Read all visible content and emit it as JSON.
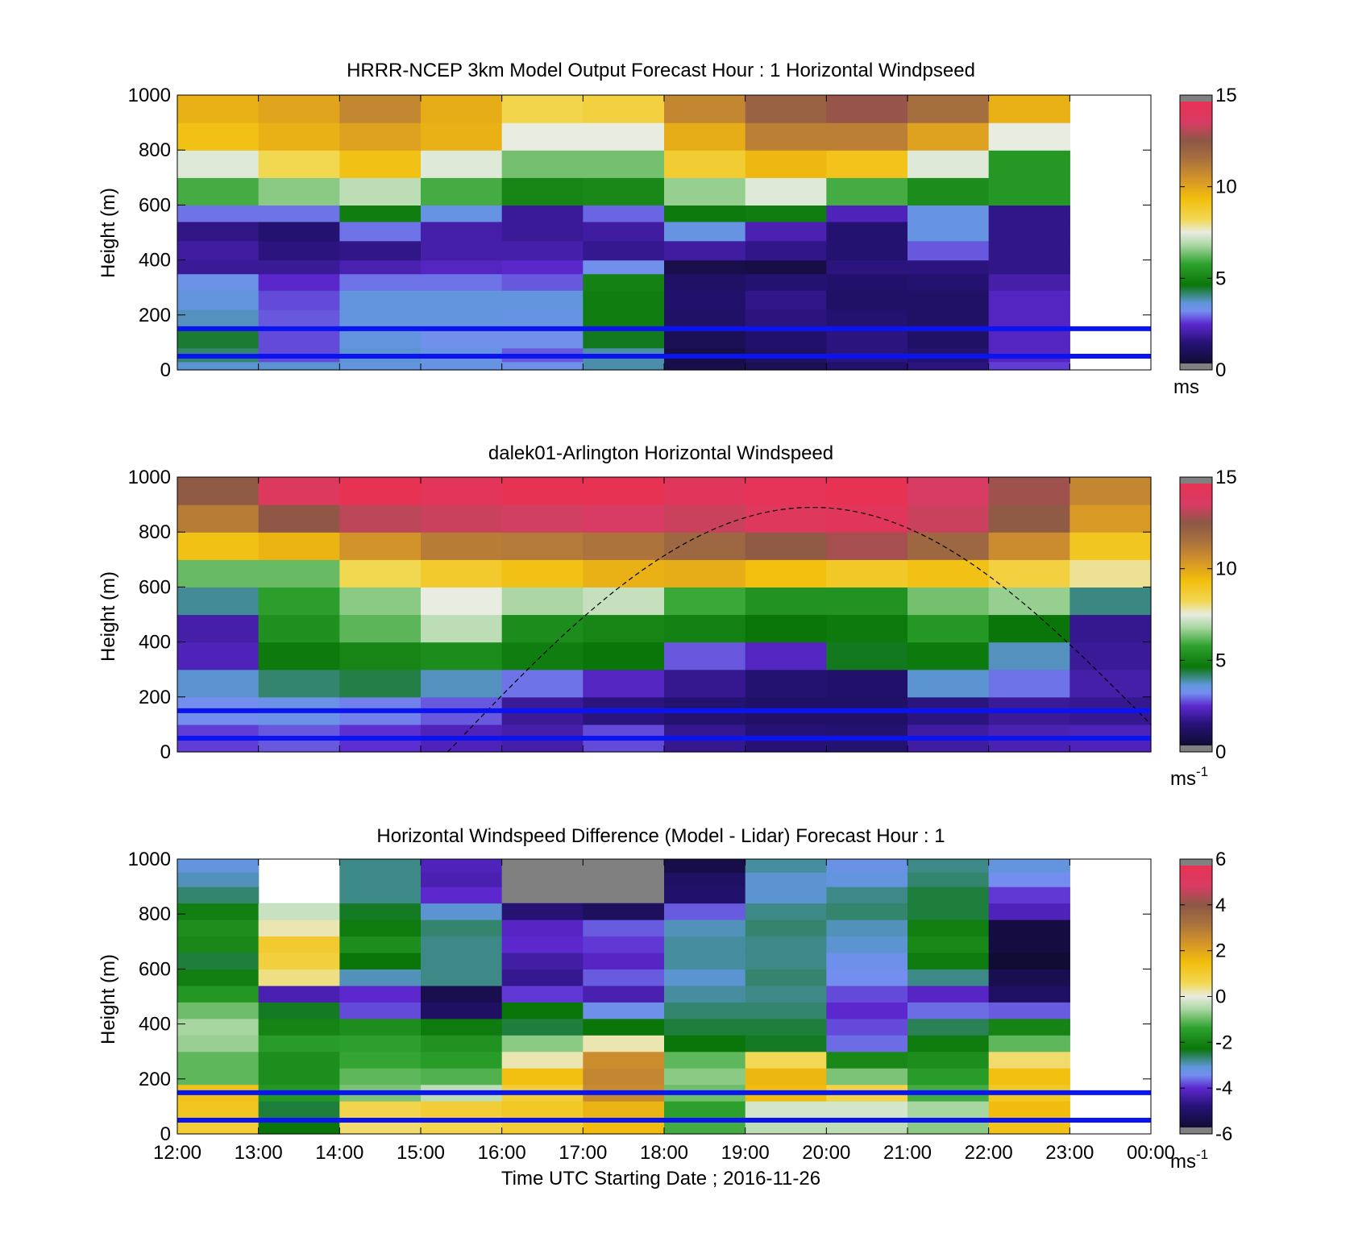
{
  "figure": {
    "xlabel": "Time UTC  Starting Date ; 2016-11-26",
    "time_ticks": [
      "12:00",
      "13:00",
      "14:00",
      "15:00",
      "16:00",
      "17:00",
      "18:00",
      "19:00",
      "20:00",
      "21:00",
      "22:00",
      "23:00",
      "00:00"
    ]
  },
  "chart_data": [
    {
      "type": "heatmap",
      "title": "HRRR-NCEP 3km Model Output   Forecast Hour : 1 Horizontal Windpseed",
      "ylabel": "Height (m)",
      "y_ticks": [
        "0",
        "200",
        "400",
        "600",
        "800",
        "1000"
      ],
      "ylim": [
        0,
        1000
      ],
      "x_range_hours": [
        12,
        24
      ],
      "colorbar": {
        "ticks": [
          "0",
          "5",
          "10",
          "15"
        ],
        "range": [
          0,
          15
        ],
        "unit": "ms",
        "unit_exponent": ""
      },
      "colormap": "speed",
      "grid": false,
      "x": [
        "12:00",
        "13:00",
        "14:00",
        "15:00",
        "16:00",
        "17:00",
        "18:00",
        "19:00",
        "20:00",
        "21:00",
        "22:00"
      ],
      "y_bins_m": [
        [
          0,
          30
        ],
        [
          30,
          80
        ],
        [
          80,
          150
        ],
        [
          150,
          220
        ],
        [
          220,
          290
        ],
        [
          290,
          350
        ],
        [
          350,
          400
        ],
        [
          400,
          470
        ],
        [
          470,
          540
        ],
        [
          540,
          600
        ],
        [
          600,
          700
        ],
        [
          700,
          800
        ],
        [
          800,
          900
        ],
        [
          900,
          1000
        ]
      ],
      "values": [
        [
          3.5,
          3.5,
          3.4,
          3.3,
          3.2,
          3.7,
          0.4,
          0.6,
          1.0,
          1.3,
          2.4
        ],
        [
          4.0,
          2.5,
          3.5,
          3.3,
          2.6,
          3.7,
          0.3,
          0.8,
          1.3,
          1.1,
          2.1
        ],
        [
          4.3,
          2.5,
          3.4,
          3.1,
          3.1,
          4.4,
          0.6,
          1.0,
          1.3,
          0.9,
          2.1
        ],
        [
          3.6,
          2.6,
          3.4,
          3.4,
          3.3,
          4.7,
          0.9,
          1.3,
          1.1,
          0.9,
          2.1
        ],
        [
          3.4,
          2.5,
          3.4,
          3.4,
          3.4,
          4.7,
          1.0,
          1.4,
          0.9,
          0.9,
          2.1
        ],
        [
          3.2,
          2.2,
          2.8,
          2.8,
          2.6,
          4.8,
          0.9,
          1.1,
          1.0,
          1.1,
          1.8
        ],
        [
          1.6,
          1.6,
          1.9,
          2.1,
          2.2,
          3.1,
          0.4,
          0.3,
          1.3,
          1.3,
          1.4
        ],
        [
          1.7,
          1.3,
          1.4,
          1.8,
          1.8,
          1.5,
          1.7,
          1.4,
          1.1,
          2.6,
          1.4
        ],
        [
          1.4,
          1.1,
          2.8,
          1.8,
          1.6,
          1.7,
          3.3,
          1.9,
          1.1,
          3.3,
          1.4
        ],
        [
          2.8,
          2.8,
          4.7,
          3.3,
          1.6,
          2.7,
          4.6,
          4.7,
          2.0,
          3.3,
          1.4
        ],
        [
          5.9,
          6.5,
          7.0,
          5.9,
          4.9,
          5.0,
          6.6,
          7.4,
          5.9,
          5.1,
          5.4
        ],
        [
          7.4,
          8.3,
          9.3,
          7.4,
          6.3,
          6.3,
          8.8,
          9.6,
          9.2,
          7.4,
          5.4
        ],
        [
          9.3,
          9.8,
          10.2,
          9.8,
          7.5,
          7.5,
          9.9,
          11.2,
          11.2,
          10.2,
          7.5
        ],
        [
          9.8,
          10.1,
          11.0,
          9.9,
          8.4,
          8.6,
          11.0,
          12.3,
          12.9,
          11.8,
          9.8
        ]
      ],
      "lines_m": [
        50,
        150
      ]
    },
    {
      "type": "heatmap",
      "title": "dalek01-Arlington  Horizontal Windspeed",
      "ylabel": "Height (m)",
      "y_ticks": [
        "0",
        "200",
        "400",
        "600",
        "800",
        "1000"
      ],
      "ylim": [
        0,
        1000
      ],
      "x_range_hours": [
        12,
        24
      ],
      "colorbar": {
        "ticks": [
          "0",
          "5",
          "10",
          "15"
        ],
        "range": [
          0,
          15
        ],
        "unit": "ms",
        "unit_exponent": "-1"
      },
      "colormap": "speed",
      "grid": false,
      "note_x": "values summarized hourly from 12:00 to 23:55",
      "x": [
        "12:00",
        "13:00",
        "14:00",
        "15:00",
        "16:00",
        "17:00",
        "18:00",
        "19:00",
        "20:00",
        "21:00",
        "22:00",
        "23:00"
      ],
      "y_heights_m": [
        50,
        150,
        250,
        350,
        450,
        550,
        650,
        750,
        850,
        950
      ],
      "values": [
        [
          2.4,
          2.6,
          2.3,
          2.0,
          1.8,
          2.5,
          1.5,
          1.2,
          1.1,
          1.7,
          1.9,
          2.0
        ],
        [
          3.0,
          3.2,
          2.9,
          2.6,
          1.6,
          1.3,
          1.1,
          0.9,
          0.9,
          1.3,
          1.6,
          1.5
        ],
        [
          3.5,
          4.0,
          4.2,
          3.6,
          2.8,
          2.1,
          1.5,
          1.1,
          1.0,
          3.5,
          2.8,
          1.8
        ],
        [
          2.0,
          4.6,
          4.9,
          5.1,
          4.7,
          4.5,
          2.6,
          2.1,
          4.4,
          4.6,
          3.6,
          1.6
        ],
        [
          1.8,
          5.2,
          6.1,
          7.0,
          5.1,
          4.9,
          4.8,
          4.5,
          4.6,
          5.4,
          4.5,
          1.5
        ],
        [
          3.8,
          5.6,
          6.5,
          7.5,
          6.8,
          7.1,
          5.8,
          5.3,
          5.3,
          6.3,
          6.6,
          3.9
        ],
        [
          6.2,
          6.2,
          8.3,
          8.9,
          9.3,
          9.8,
          9.9,
          9.4,
          9.0,
          9.3,
          8.6,
          7.9
        ],
        [
          9.3,
          9.7,
          10.6,
          11.3,
          11.4,
          11.6,
          12.1,
          12.6,
          13.1,
          12.1,
          10.8,
          9.1
        ],
        [
          11.3,
          12.8,
          13.4,
          13.6,
          13.7,
          13.8,
          13.6,
          14.3,
          14.5,
          13.6,
          12.6,
          10.4
        ],
        [
          12.6,
          14.2,
          15.0,
          14.6,
          15.5,
          15.5,
          14.5,
          14.8,
          15.5,
          13.8,
          13.0,
          11.0
        ]
      ],
      "lines_m": [
        50,
        150
      ],
      "dashed_curve": {
        "from": "15:20",
        "to": "00:00",
        "peak_time": "19:50",
        "peak_m": 890,
        "end_m": 100
      }
    },
    {
      "type": "heatmap",
      "title": "Horizontal Windspeed Difference (Model - Lidar) Forecast Hour : 1",
      "ylabel": "Height (m)",
      "y_ticks": [
        "0",
        "200",
        "400",
        "600",
        "800",
        "1000"
      ],
      "ylim": [
        0,
        1000
      ],
      "x_range_hours": [
        12,
        24
      ],
      "colorbar": {
        "ticks": [
          "-6",
          "-4",
          "-2",
          "0",
          "2",
          "4",
          "6"
        ],
        "range": [
          -6,
          6
        ],
        "unit": "ms",
        "unit_exponent": "-1"
      },
      "colormap": "diff",
      "grid": false,
      "x": [
        "12:00",
        "13:00",
        "14:00",
        "15:00",
        "16:00",
        "17:00",
        "18:00",
        "19:00",
        "20:00",
        "21:00",
        "22:00"
      ],
      "y_heights_m": [
        30,
        90,
        150,
        210,
        270,
        330,
        390,
        450,
        510,
        570,
        630,
        690,
        750,
        810,
        870,
        930,
        975
      ],
      "values": [
        [
          1.0,
          -2.4,
          0.5,
          0.7,
          1.0,
          1.6,
          -1.3,
          -0.4,
          -0.4,
          -0.8,
          1.4
        ],
        [
          1.3,
          -2.6,
          0.7,
          1.0,
          1.2,
          1.8,
          -1.5,
          -0.2,
          -0.2,
          -0.6,
          1.6
        ],
        [
          1.4,
          -1.7,
          -0.9,
          -0.4,
          1.0,
          2.7,
          -1.0,
          1.6,
          0.8,
          -1.3,
          1.2
        ],
        [
          -1.1,
          -1.9,
          -1.1,
          -1.2,
          1.5,
          2.8,
          -0.8,
          1.7,
          -0.9,
          -1.6,
          1.5
        ],
        [
          -1.1,
          -1.9,
          -1.4,
          -1.6,
          0.2,
          2.6,
          -1.1,
          0.6,
          -2.0,
          -1.9,
          0.5
        ],
        [
          -0.7,
          -1.6,
          -1.5,
          -1.8,
          -0.8,
          0.2,
          -2.4,
          -2.5,
          -3.8,
          -2.3,
          -1.1
        ],
        [
          -0.6,
          -2.1,
          -1.9,
          -2.3,
          -2.6,
          -2.4,
          -2.6,
          -2.6,
          -4.0,
          -2.7,
          -2.1
        ],
        [
          -1.0,
          -2.5,
          -4.0,
          -5.3,
          -2.4,
          -3.5,
          -2.8,
          -2.8,
          -4.2,
          -3.8,
          -3.9
        ],
        [
          -1.7,
          -4.5,
          -4.2,
          -5.6,
          -4.1,
          -4.5,
          -3.0,
          -2.9,
          -4.0,
          -4.3,
          -5.3
        ],
        [
          -2.2,
          0.4,
          -3.1,
          -2.9,
          -4.8,
          -3.9,
          -3.2,
          -2.8,
          -3.6,
          -2.9,
          -5.6
        ],
        [
          -2.6,
          0.9,
          -2.4,
          -2.9,
          -4.6,
          -4.3,
          -3.0,
          -2.9,
          -3.5,
          -2.3,
          -6.0
        ],
        [
          -2.0,
          1.1,
          -1.9,
          -2.9,
          -4.2,
          -4.1,
          -3.0,
          -2.9,
          -3.2,
          -2.0,
          -5.8
        ],
        [
          -1.9,
          0.2,
          -2.3,
          -2.8,
          -4.3,
          -3.9,
          -3.1,
          -2.8,
          -3.1,
          -2.2,
          -5.8
        ],
        [
          -2.2,
          -0.3,
          -2.5,
          -3.2,
          -5.1,
          -5.4,
          -3.9,
          -2.9,
          -2.8,
          -2.6,
          -4.4
        ],
        [
          -2.8,
          null,
          -2.9,
          -4.2,
          null,
          null,
          -5.2,
          -3.2,
          -2.9,
          -2.6,
          -4.1
        ],
        [
          -3.1,
          null,
          -2.9,
          -4.5,
          null,
          null,
          -5.3,
          -3.2,
          -3.3,
          -2.8,
          -3.6
        ],
        [
          -3.3,
          null,
          -2.9,
          -4.4,
          null,
          null,
          -5.7,
          -3.0,
          -3.4,
          -2.9,
          -3.3
        ]
      ],
      "gray_top": [
        "16:00",
        "17:00"
      ],
      "lines_m": [
        50,
        150
      ]
    }
  ]
}
